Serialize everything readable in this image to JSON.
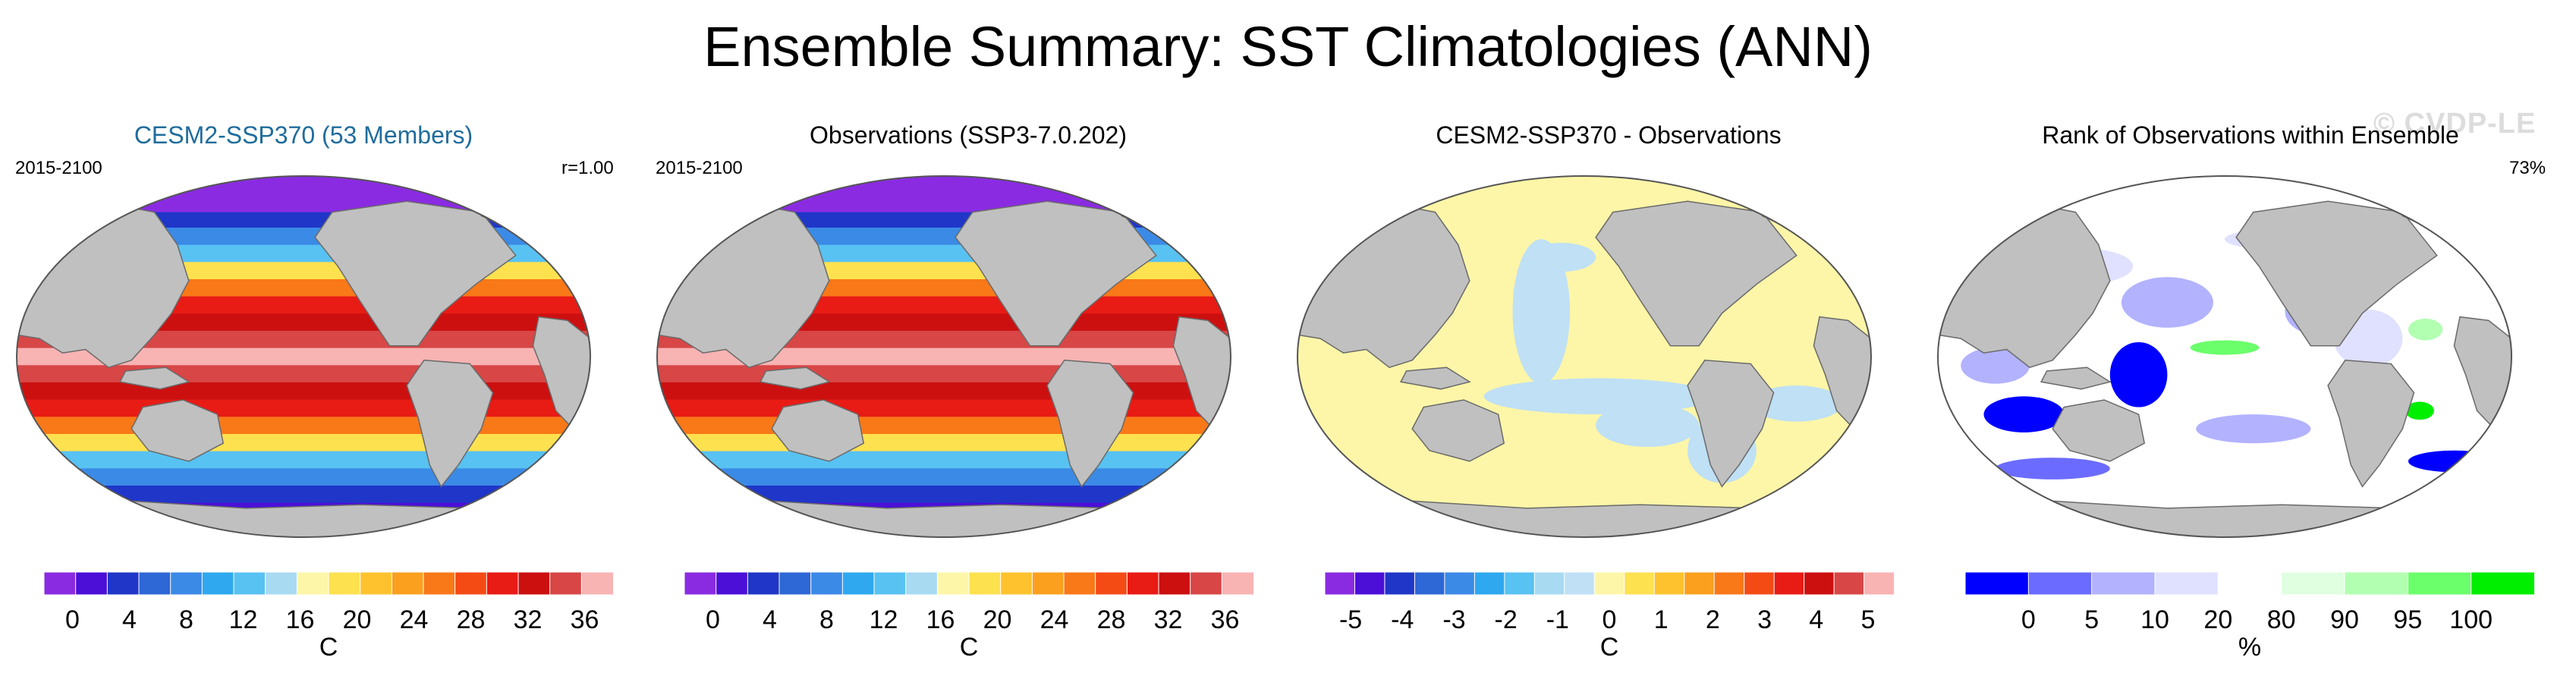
{
  "title": "Ensemble Summary: SST Climatologies (ANN)",
  "watermark": "© CVDP-LE",
  "colors": {
    "land": "#c0c0c0",
    "sst": [
      "#8a2be2",
      "#4b0fd8",
      "#1f36c8",
      "#2e67d6",
      "#3b8ae6",
      "#2fa8f0",
      "#58c2f2",
      "#a8daf2",
      "#fdf6a8",
      "#fde14f",
      "#fdc22e",
      "#fba01e",
      "#f97818",
      "#f44b15",
      "#e81b15",
      "#cc1010",
      "#d84646",
      "#f8b3b3"
    ],
    "diff": [
      "#8a2be2",
      "#4b0fd8",
      "#1f36c8",
      "#2e67d6",
      "#3b8ae6",
      "#2fa8f0",
      "#58c2f2",
      "#a8daf2",
      "#bfe0f5",
      "#fdf6a8",
      "#fde14f",
      "#fdc22e",
      "#fba01e",
      "#f97818",
      "#f44b15",
      "#e81b15",
      "#cc1010",
      "#d84646",
      "#f8b3b3"
    ],
    "rank": [
      "#0000ff",
      "#6b6bff",
      "#b2b2ff",
      "#e0e0ff",
      "#ffffff",
      "#e0ffe0",
      "#b2ffb2",
      "#6bff6b",
      "#00ee00"
    ]
  },
  "panels": [
    {
      "title": "CESM2-SSP370 (53 Members)",
      "left": "2015-2100",
      "right": "r=1.00",
      "type": "sst"
    },
    {
      "title": "Observations (SSP3-7.0.202)",
      "left": "2015-2100",
      "right": "",
      "type": "sst"
    },
    {
      "title": "CESM2-SSP370 - Observations",
      "left": "",
      "right": "",
      "type": "diff"
    },
    {
      "title": "Rank of Observations within Ensemble",
      "left": "",
      "right": "73%",
      "type": "rank"
    }
  ],
  "chart_data": [
    {
      "type": "heatmap",
      "title": "CESM2-SSP370 (53 Members)",
      "period": "2015-2100",
      "pattern_correlation": "r=1.00",
      "units": "C",
      "levels": [
        0,
        2,
        4,
        6,
        8,
        10,
        12,
        14,
        16,
        18,
        20,
        22,
        24,
        26,
        28,
        30,
        32,
        34,
        36
      ],
      "tick_labels": [
        "0",
        "4",
        "8",
        "12",
        "16",
        "20",
        "24",
        "28",
        "32",
        "36"
      ],
      "range": [
        -1,
        36
      ]
    },
    {
      "type": "heatmap",
      "title": "Observations (SSP3-7.0.202)",
      "period": "2015-2100",
      "units": "C",
      "levels": [
        0,
        2,
        4,
        6,
        8,
        10,
        12,
        14,
        16,
        18,
        20,
        22,
        24,
        26,
        28,
        30,
        32,
        34,
        36
      ],
      "tick_labels": [
        "0",
        "4",
        "8",
        "12",
        "16",
        "20",
        "24",
        "28",
        "32",
        "36"
      ],
      "range": [
        -1,
        36
      ]
    },
    {
      "type": "heatmap",
      "title": "CESM2-SSP370 - Observations",
      "units": "C",
      "levels": [
        -5,
        -4,
        -3,
        -2,
        -1,
        -0.5,
        0,
        0.5,
        1,
        2,
        3,
        4,
        5
      ],
      "tick_labels": [
        "-5",
        "-4",
        "-3",
        "-2",
        "-1",
        "0",
        "1",
        "2",
        "3",
        "4",
        "5"
      ],
      "range": [
        -0.5,
        0.5
      ]
    },
    {
      "type": "heatmap",
      "title": "Rank of Observations within Ensemble",
      "summary": "73%",
      "units": "%",
      "levels": [
        0,
        5,
        10,
        20,
        80,
        90,
        95,
        100
      ],
      "tick_labels": [
        "0",
        "5",
        "10",
        "20",
        "80",
        "90",
        "95",
        "100"
      ],
      "range": [
        0,
        100
      ]
    }
  ]
}
